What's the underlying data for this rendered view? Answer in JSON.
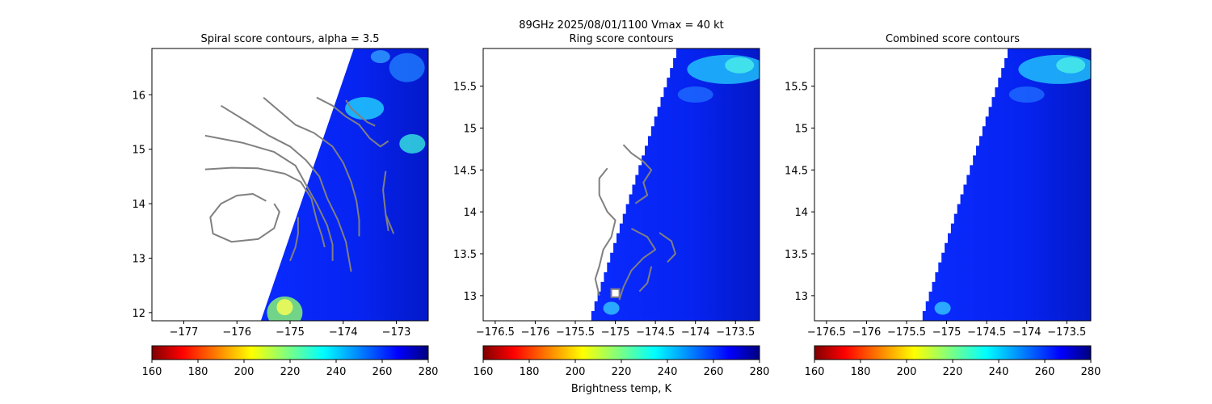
{
  "suptitle": "89GHz  2025/08/01/1100    Vmax = 40 kt",
  "colorbar": {
    "label": "Brightness temp, K",
    "ticks": [
      160,
      180,
      200,
      220,
      240,
      260,
      280
    ],
    "range": [
      160,
      280
    ],
    "cmap": "jet"
  },
  "chart_data": [
    {
      "type": "heatmap",
      "title": "Spiral score contours, alpha =  3.5",
      "xlim": [
        -177.6,
        -172.4
      ],
      "ylim": [
        11.85,
        16.85
      ],
      "xticks": [
        -177,
        -176,
        -175,
        -174,
        -173
      ],
      "yticks": [
        12,
        13,
        14,
        15,
        16
      ],
      "swath_edge": [
        [
          -175.55,
          11.85
        ],
        [
          -173.8,
          16.85
        ]
      ],
      "contour_color": "#808080",
      "contours": [
        [
          [
            -176.6,
            14.63
          ],
          [
            -176.1,
            14.66
          ],
          [
            -175.6,
            14.65
          ],
          [
            -175.1,
            14.55
          ],
          [
            -174.8,
            14.4
          ],
          [
            -174.6,
            14.1
          ],
          [
            -174.5,
            13.7
          ],
          [
            -174.4,
            13.4
          ],
          [
            -174.35,
            13.2
          ]
        ],
        [
          [
            -176.6,
            15.25
          ],
          [
            -175.9,
            15.12
          ],
          [
            -175.3,
            14.95
          ],
          [
            -174.9,
            14.7
          ],
          [
            -174.7,
            14.35
          ],
          [
            -174.5,
            14.0
          ],
          [
            -174.3,
            13.6
          ],
          [
            -174.2,
            13.25
          ],
          [
            -174.2,
            12.95
          ]
        ],
        [
          [
            -176.3,
            15.8
          ],
          [
            -175.8,
            15.5
          ],
          [
            -175.4,
            15.25
          ],
          [
            -175.0,
            15.05
          ],
          [
            -174.7,
            14.8
          ],
          [
            -174.45,
            14.5
          ],
          [
            -174.3,
            14.1
          ],
          [
            -174.1,
            13.7
          ],
          [
            -173.95,
            13.3
          ],
          [
            -173.85,
            12.75
          ]
        ],
        [
          [
            -175.5,
            15.95
          ],
          [
            -175.2,
            15.7
          ],
          [
            -174.9,
            15.45
          ],
          [
            -174.55,
            15.3
          ],
          [
            -174.2,
            15.05
          ],
          [
            -174.0,
            14.75
          ],
          [
            -173.85,
            14.4
          ],
          [
            -173.75,
            14.05
          ],
          [
            -173.7,
            13.7
          ],
          [
            -173.7,
            13.4
          ]
        ],
        [
          [
            -174.5,
            15.95
          ],
          [
            -174.2,
            15.8
          ],
          [
            -173.95,
            15.6
          ],
          [
            -173.7,
            15.45
          ],
          [
            -173.5,
            15.2
          ],
          [
            -173.3,
            15.05
          ],
          [
            -173.15,
            15.15
          ]
        ],
        [
          [
            -173.95,
            15.9
          ],
          [
            -173.85,
            15.75
          ],
          [
            -173.7,
            15.62
          ],
          [
            -173.55,
            15.5
          ],
          [
            -173.4,
            15.43
          ]
        ],
        [
          [
            -175.45,
            14.05
          ],
          [
            -175.7,
            14.18
          ],
          [
            -176.0,
            14.15
          ],
          [
            -176.3,
            14.0
          ],
          [
            -176.5,
            13.75
          ],
          [
            -176.45,
            13.45
          ],
          [
            -176.1,
            13.3
          ],
          [
            -175.6,
            13.35
          ],
          [
            -175.3,
            13.55
          ],
          [
            -175.2,
            13.85
          ],
          [
            -175.3,
            14.0
          ]
        ],
        [
          [
            -174.85,
            13.75
          ],
          [
            -174.85,
            13.45
          ],
          [
            -174.9,
            13.2
          ],
          [
            -175.0,
            12.95
          ]
        ],
        [
          [
            -173.2,
            14.6
          ],
          [
            -173.25,
            14.25
          ],
          [
            -173.2,
            13.8
          ],
          [
            -173.15,
            13.5
          ]
        ],
        [
          [
            -173.2,
            13.8
          ],
          [
            -173.05,
            13.45
          ]
        ]
      ]
    },
    {
      "type": "heatmap",
      "title": "Ring score contours",
      "xlim": [
        -176.65,
        -173.2
      ],
      "ylim": [
        12.7,
        15.95
      ],
      "xticks": [
        -176.5,
        -176.0,
        -175.5,
        -175.0,
        -174.5,
        -174.0,
        -173.5
      ],
      "yticks": [
        13.0,
        13.5,
        14.0,
        14.5,
        15.0,
        15.5
      ],
      "swath_edge": [
        [
          -175.3,
          12.7
        ],
        [
          -174.2,
          15.95
        ]
      ],
      "contour_color": "#808080",
      "contours": [
        [
          [
            -175.1,
            14.52
          ],
          [
            -175.2,
            14.4
          ],
          [
            -175.2,
            14.2
          ],
          [
            -175.1,
            14.0
          ],
          [
            -175.0,
            13.9
          ],
          [
            -175.05,
            13.7
          ],
          [
            -175.15,
            13.55
          ],
          [
            -175.2,
            13.35
          ],
          [
            -175.25,
            13.2
          ],
          [
            -175.2,
            13.0
          ]
        ],
        [
          [
            -174.9,
            14.8
          ],
          [
            -174.8,
            14.7
          ],
          [
            -174.65,
            14.6
          ],
          [
            -174.55,
            14.5
          ],
          [
            -174.65,
            14.35
          ],
          [
            -174.6,
            14.2
          ],
          [
            -174.75,
            14.1
          ]
        ],
        [
          [
            -174.8,
            13.8
          ],
          [
            -174.6,
            13.7
          ],
          [
            -174.5,
            13.55
          ],
          [
            -174.65,
            13.45
          ],
          [
            -174.8,
            13.3
          ],
          [
            -174.9,
            13.1
          ],
          [
            -174.95,
            12.95
          ]
        ],
        [
          [
            -174.45,
            13.75
          ],
          [
            -174.3,
            13.65
          ],
          [
            -174.25,
            13.5
          ],
          [
            -174.35,
            13.4
          ]
        ],
        [
          [
            -174.55,
            13.35
          ],
          [
            -174.6,
            13.15
          ],
          [
            -174.7,
            13.05
          ]
        ]
      ],
      "markers": [
        [
          -175.0,
          13.03
        ]
      ]
    },
    {
      "type": "heatmap",
      "title": "Combined score contours",
      "xlim": [
        -176.65,
        -173.2
      ],
      "ylim": [
        12.7,
        15.95
      ],
      "xticks": [
        -176.5,
        -176.0,
        -175.5,
        -175.0,
        -174.5,
        -174.0,
        -173.5
      ],
      "yticks": [
        13.0,
        13.5,
        14.0,
        14.5,
        15.0,
        15.5
      ],
      "swath_edge": [
        [
          -175.3,
          12.7
        ],
        [
          -174.2,
          15.95
        ]
      ],
      "contour_color": "#808080",
      "contours": []
    }
  ]
}
